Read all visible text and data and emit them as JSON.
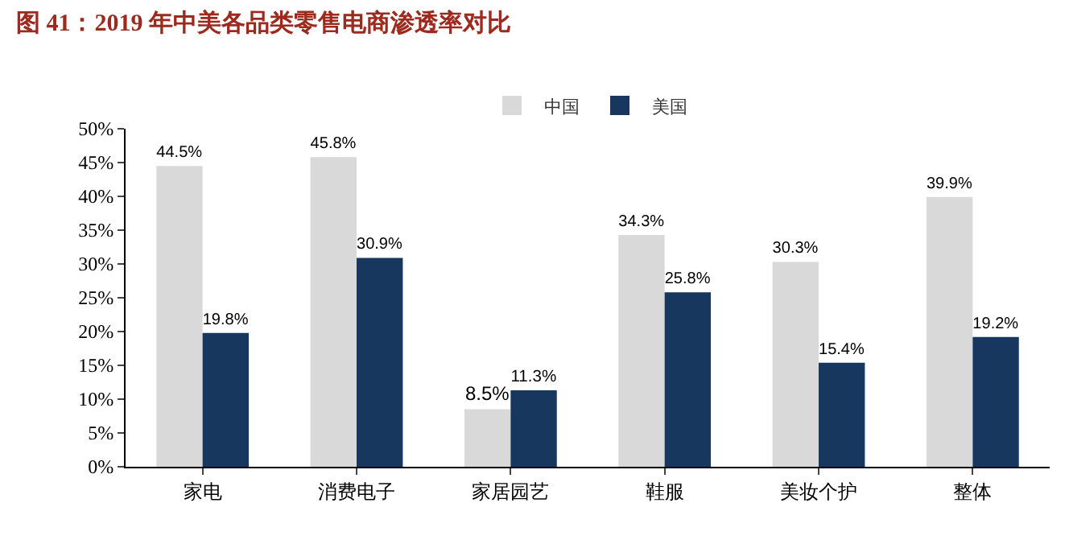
{
  "chart_data": {
    "type": "bar",
    "title": "图 41：2019 年中美各品类零售电商渗透率对比",
    "categories": [
      "家电",
      "消费电子",
      "家居园艺",
      "鞋服",
      "美妆个护",
      "整体"
    ],
    "series": [
      {
        "name": "中国",
        "color": "#d9d9d9",
        "values": [
          44.5,
          45.8,
          8.5,
          34.3,
          30.3,
          39.9
        ],
        "value_labels": [
          "44.5%",
          "45.8%",
          "8.5%",
          "34.3%",
          "30.3%",
          "39.9%"
        ]
      },
      {
        "name": "美国",
        "color": "#17375e",
        "values": [
          19.8,
          30.9,
          11.3,
          25.8,
          15.4,
          19.2
        ],
        "value_labels": [
          "19.8%",
          "30.9%",
          "11.3%",
          "25.8%",
          "15.4%",
          "19.2%"
        ]
      }
    ],
    "ylim": [
      0,
      50
    ],
    "yticks": [
      {
        "value": 0,
        "label": "0%"
      },
      {
        "value": 5,
        "label": "5%"
      },
      {
        "value": 10,
        "label": "10%"
      },
      {
        "value": 15,
        "label": "15%"
      },
      {
        "value": 20,
        "label": "20%"
      },
      {
        "value": 25,
        "label": "25%"
      },
      {
        "value": 30,
        "label": "30%"
      },
      {
        "value": 35,
        "label": "35%"
      },
      {
        "value": 40,
        "label": "40%"
      },
      {
        "value": 45,
        "label": "45%"
      },
      {
        "value": 50,
        "label": "50%"
      }
    ],
    "grid": false,
    "legend": "top"
  }
}
